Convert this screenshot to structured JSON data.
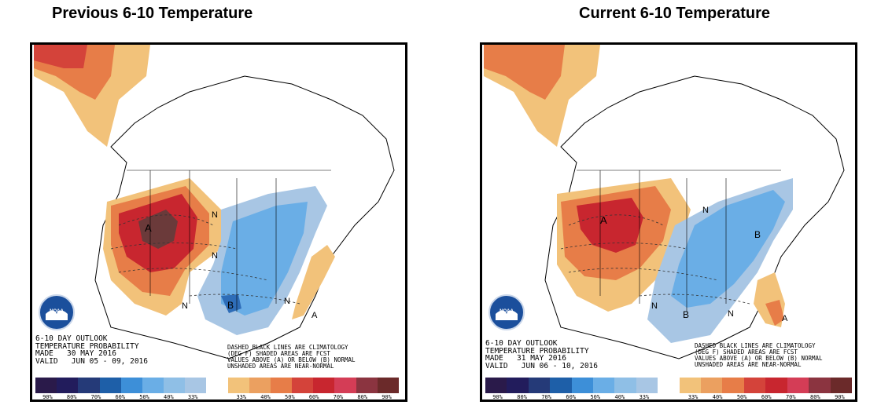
{
  "panels": {
    "previous": {
      "title": "Previous 6-10 Temperature",
      "outlook": {
        "line1": "6-10 DAY OUTLOOK",
        "line2": "TEMPERATURE PROBABILITY",
        "line3": "MADE   30 MAY 2016",
        "line4": "VALID   JUN 05 - 09, 2016"
      }
    },
    "current": {
      "title": "Current 6-10 Temperature",
      "outlook": {
        "line1": "6-10 DAY OUTLOOK",
        "line2": "TEMPERATURE PROBABILITY",
        "line3": "MADE   31 MAY 2016",
        "line4": "VALID   JUN 06 - 10, 2016"
      }
    }
  },
  "legend_note": {
    "line1": "DASHED BLACK LINES ARE CLIMATOLOGY",
    "line2": "(DEG F) SHADED AREAS ARE FCST",
    "line3": "VALUES ABOVE (A) OR BELOW (B) NORMAL",
    "line4": "UNSHADED AREAS ARE NEAR-NORMAL"
  },
  "map_labels": {
    "above": "A",
    "below": "B",
    "normal": "N"
  },
  "logo": {
    "text": "NOAA"
  },
  "colorbar": {
    "colors": [
      "#2a1a4a",
      "#221c5c",
      "#253a78",
      "#1e5fa8",
      "#3d8fd8",
      "#6aaee6",
      "#8fbfe6",
      "#a8c6e4",
      "#ffffff",
      "#f2c27a",
      "#eba060",
      "#e77d48",
      "#d4433a",
      "#c8262f",
      "#d43d56",
      "#8b3440",
      "#6b2a2a"
    ],
    "ticks": [
      "90%",
      "80%",
      "70%",
      "60%",
      "50%",
      "40%",
      "33%",
      "",
      "33%",
      "40%",
      "50%",
      "60%",
      "70%",
      "80%",
      "90%"
    ]
  },
  "colors": {
    "above_light": "#f2c27a",
    "above_mid": "#e77d48",
    "above_strong": "#c8262f",
    "above_extreme": "#6b3a3a",
    "below_light": "#a8c6e4",
    "below_mid": "#6aaee6",
    "below_strong": "#2e6db8"
  }
}
